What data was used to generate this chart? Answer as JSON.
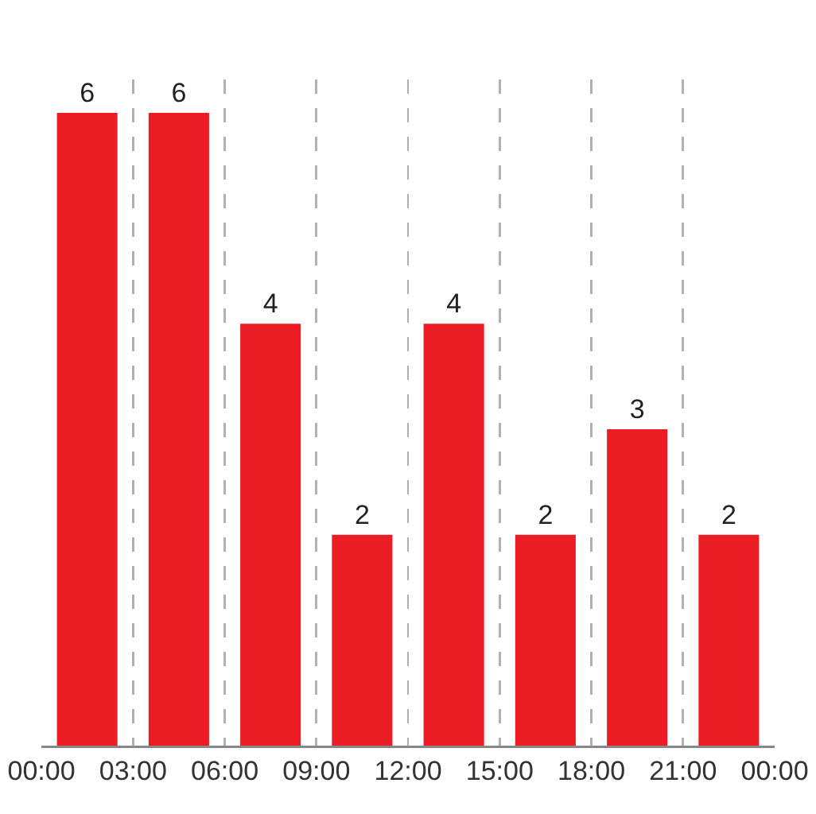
{
  "chart_data": {
    "type": "bar",
    "x": [
      1.5,
      4.5,
      7.5,
      10.5,
      13.5,
      16.5,
      19.5,
      22.5
    ],
    "values": [
      6,
      6,
      4,
      2,
      4,
      2,
      3,
      2
    ],
    "color": "#ec1c24",
    "xlim": [
      0,
      24
    ],
    "xticks": [
      {
        "value": 0,
        "label": "00:00"
      },
      {
        "value": 3,
        "label": "03:00"
      },
      {
        "value": 6,
        "label": "06:00"
      },
      {
        "value": 9,
        "label": "09:00"
      },
      {
        "value": 12,
        "label": "12:00"
      },
      {
        "value": 15,
        "label": "15:00"
      },
      {
        "value": 18,
        "label": "18:00"
      },
      {
        "value": 21,
        "label": "21:00"
      },
      {
        "value": 24,
        "label": "00:00"
      }
    ],
    "grid": "x",
    "data_labels": true,
    "tick_labels": "x"
  }
}
